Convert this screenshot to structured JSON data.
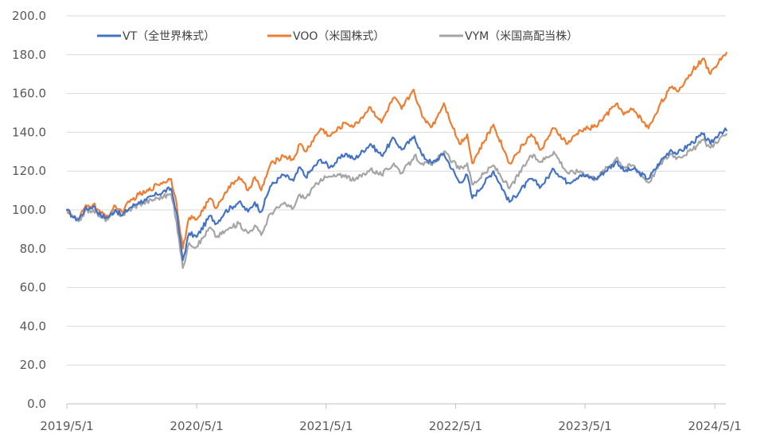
{
  "chart_data": {
    "type": "line",
    "title": "",
    "xlabel": "",
    "ylabel": "",
    "ylim": [
      0,
      200
    ],
    "xlim": [
      "2019-05-01",
      "2024-06-01"
    ],
    "grid": true,
    "legend_position": "top-left",
    "y_ticks": [
      "0.0",
      "20.0",
      "40.0",
      "60.0",
      "80.0",
      "100.0",
      "120.0",
      "140.0",
      "160.0",
      "180.0",
      "200.0"
    ],
    "x_ticks": [
      {
        "date": "2019-05-01",
        "label": "2019/5/1"
      },
      {
        "date": "2020-05-01",
        "label": "2020/5/1"
      },
      {
        "date": "2021-05-01",
        "label": "2021/5/1"
      },
      {
        "date": "2022-05-01",
        "label": "2022/5/1"
      },
      {
        "date": "2023-05-01",
        "label": "2023/5/1"
      },
      {
        "date": "2024-05-01",
        "label": "2024/5/1"
      }
    ],
    "series": [
      {
        "name": "VT（全世界株式）",
        "color": "#4472c4",
        "points": [
          [
            "2019-05-01",
            100
          ],
          [
            "2019-05-20",
            96
          ],
          [
            "2019-06-03",
            95
          ],
          [
            "2019-06-20",
            100
          ],
          [
            "2019-07-15",
            102
          ],
          [
            "2019-08-05",
            97
          ],
          [
            "2019-08-25",
            96
          ],
          [
            "2019-09-15",
            100
          ],
          [
            "2019-10-03",
            97
          ],
          [
            "2019-10-25",
            101
          ],
          [
            "2019-11-20",
            104
          ],
          [
            "2019-12-10",
            105
          ],
          [
            "2020-01-10",
            108
          ],
          [
            "2020-02-19",
            111
          ],
          [
            "2020-03-05",
            99
          ],
          [
            "2020-03-23",
            74
          ],
          [
            "2020-04-10",
            88
          ],
          [
            "2020-05-01",
            86
          ],
          [
            "2020-06-08",
            97
          ],
          [
            "2020-06-26",
            93
          ],
          [
            "2020-07-20",
            99
          ],
          [
            "2020-08-28",
            104
          ],
          [
            "2020-09-23",
            99
          ],
          [
            "2020-10-12",
            104
          ],
          [
            "2020-10-30",
            99
          ],
          [
            "2020-11-24",
            112
          ],
          [
            "2020-12-31",
            118
          ],
          [
            "2021-01-29",
            115
          ],
          [
            "2021-02-16",
            122
          ],
          [
            "2021-03-04",
            117
          ],
          [
            "2021-04-16",
            126
          ],
          [
            "2021-05-12",
            122
          ],
          [
            "2021-06-25",
            129
          ],
          [
            "2021-07-19",
            126
          ],
          [
            "2021-09-03",
            134
          ],
          [
            "2021-10-04",
            128
          ],
          [
            "2021-11-08",
            137
          ],
          [
            "2021-11-30",
            131
          ],
          [
            "2021-12-27",
            136
          ],
          [
            "2022-01-05",
            138
          ],
          [
            "2022-01-27",
            128
          ],
          [
            "2022-02-24",
            124
          ],
          [
            "2022-03-29",
            129
          ],
          [
            "2022-05-12",
            114
          ],
          [
            "2022-06-03",
            118
          ],
          [
            "2022-06-17",
            106
          ],
          [
            "2022-08-16",
            120
          ],
          [
            "2022-09-30",
            104
          ],
          [
            "2022-11-30",
            116
          ],
          [
            "2022-12-28",
            112
          ],
          [
            "2023-02-02",
            121
          ],
          [
            "2023-03-13",
            114
          ],
          [
            "2023-04-18",
            118
          ],
          [
            "2023-05-31",
            116
          ],
          [
            "2023-07-31",
            125
          ],
          [
            "2023-08-18",
            120
          ],
          [
            "2023-09-14",
            121
          ],
          [
            "2023-10-27",
            116
          ],
          [
            "2023-11-30",
            125
          ],
          [
            "2023-12-29",
            131
          ],
          [
            "2024-01-17",
            129
          ],
          [
            "2024-02-29",
            135
          ],
          [
            "2024-03-28",
            139
          ],
          [
            "2024-04-19",
            134
          ],
          [
            "2024-05-15",
            140
          ],
          [
            "2024-06-03",
            141
          ]
        ]
      },
      {
        "name": "VOO（米国株式）",
        "color": "#ed7d31",
        "points": [
          [
            "2019-05-01",
            100
          ],
          [
            "2019-05-20",
            96
          ],
          [
            "2019-06-03",
            95
          ],
          [
            "2019-06-20",
            101
          ],
          [
            "2019-07-15",
            103
          ],
          [
            "2019-08-05",
            98
          ],
          [
            "2019-08-25",
            97
          ],
          [
            "2019-09-15",
            102
          ],
          [
            "2019-10-03",
            99
          ],
          [
            "2019-10-25",
            104
          ],
          [
            "2019-11-20",
            108
          ],
          [
            "2019-12-10",
            109
          ],
          [
            "2020-01-10",
            113
          ],
          [
            "2020-02-19",
            116
          ],
          [
            "2020-03-05",
            104
          ],
          [
            "2020-03-23",
            80
          ],
          [
            "2020-04-10",
            96
          ],
          [
            "2020-05-01",
            95
          ],
          [
            "2020-06-08",
            106
          ],
          [
            "2020-06-26",
            101
          ],
          [
            "2020-07-20",
            109
          ],
          [
            "2020-08-28",
            117
          ],
          [
            "2020-09-23",
            110
          ],
          [
            "2020-10-12",
            117
          ],
          [
            "2020-10-30",
            110
          ],
          [
            "2020-11-24",
            123
          ],
          [
            "2020-12-31",
            128
          ],
          [
            "2021-01-29",
            126
          ],
          [
            "2021-02-16",
            134
          ],
          [
            "2021-03-04",
            130
          ],
          [
            "2021-04-16",
            142
          ],
          [
            "2021-05-12",
            138
          ],
          [
            "2021-06-25",
            145
          ],
          [
            "2021-07-19",
            143
          ],
          [
            "2021-09-03",
            153
          ],
          [
            "2021-10-04",
            145
          ],
          [
            "2021-11-08",
            158
          ],
          [
            "2021-11-30",
            152
          ],
          [
            "2021-12-27",
            160
          ],
          [
            "2022-01-03",
            162
          ],
          [
            "2022-01-27",
            148
          ],
          [
            "2022-02-24",
            143
          ],
          [
            "2022-03-29",
            155
          ],
          [
            "2022-05-12",
            134
          ],
          [
            "2022-06-03",
            139
          ],
          [
            "2022-06-17",
            124
          ],
          [
            "2022-08-16",
            144
          ],
          [
            "2022-09-30",
            124
          ],
          [
            "2022-11-30",
            139
          ],
          [
            "2022-12-28",
            131
          ],
          [
            "2023-02-02",
            142
          ],
          [
            "2023-03-13",
            134
          ],
          [
            "2023-04-18",
            141
          ],
          [
            "2023-05-31",
            143
          ],
          [
            "2023-07-31",
            155
          ],
          [
            "2023-08-18",
            149
          ],
          [
            "2023-09-14",
            152
          ],
          [
            "2023-10-27",
            142
          ],
          [
            "2023-11-30",
            155
          ],
          [
            "2023-12-29",
            163
          ],
          [
            "2024-01-17",
            161
          ],
          [
            "2024-02-29",
            172
          ],
          [
            "2024-03-28",
            178
          ],
          [
            "2024-04-19",
            170
          ],
          [
            "2024-05-15",
            178
          ],
          [
            "2024-06-03",
            181
          ]
        ]
      },
      {
        "name": "VYM（米国高配当株）",
        "color": "#a5a5a5",
        "points": [
          [
            "2019-05-01",
            100
          ],
          [
            "2019-05-20",
            96
          ],
          [
            "2019-06-03",
            94
          ],
          [
            "2019-06-20",
            99
          ],
          [
            "2019-07-15",
            100
          ],
          [
            "2019-08-05",
            96
          ],
          [
            "2019-08-25",
            95
          ],
          [
            "2019-09-15",
            100
          ],
          [
            "2019-10-03",
            97
          ],
          [
            "2019-10-25",
            100
          ],
          [
            "2019-11-20",
            103
          ],
          [
            "2019-12-10",
            104
          ],
          [
            "2020-01-10",
            106
          ],
          [
            "2020-02-19",
            108
          ],
          [
            "2020-03-05",
            94
          ],
          [
            "2020-03-23",
            70
          ],
          [
            "2020-04-10",
            83
          ],
          [
            "2020-05-01",
            81
          ],
          [
            "2020-06-08",
            91
          ],
          [
            "2020-06-26",
            86
          ],
          [
            "2020-07-20",
            89
          ],
          [
            "2020-08-28",
            93
          ],
          [
            "2020-09-23",
            88
          ],
          [
            "2020-10-12",
            92
          ],
          [
            "2020-10-30",
            87
          ],
          [
            "2020-11-24",
            98
          ],
          [
            "2020-12-31",
            103
          ],
          [
            "2021-01-29",
            101
          ],
          [
            "2021-02-16",
            108
          ],
          [
            "2021-03-04",
            106
          ],
          [
            "2021-04-16",
            116
          ],
          [
            "2021-05-12",
            117
          ],
          [
            "2021-06-25",
            118
          ],
          [
            "2021-07-19",
            115
          ],
          [
            "2021-09-03",
            121
          ],
          [
            "2021-10-04",
            118
          ],
          [
            "2021-11-08",
            124
          ],
          [
            "2021-11-30",
            119
          ],
          [
            "2021-12-27",
            125
          ],
          [
            "2022-01-05",
            128
          ],
          [
            "2022-01-27",
            124
          ],
          [
            "2022-02-24",
            123
          ],
          [
            "2022-03-29",
            130
          ],
          [
            "2022-05-12",
            121
          ],
          [
            "2022-06-03",
            124
          ],
          [
            "2022-06-17",
            113
          ],
          [
            "2022-08-16",
            123
          ],
          [
            "2022-09-30",
            111
          ],
          [
            "2022-11-30",
            128
          ],
          [
            "2022-12-28",
            125
          ],
          [
            "2023-02-02",
            130
          ],
          [
            "2023-03-13",
            119
          ],
          [
            "2023-04-18",
            120
          ],
          [
            "2023-05-31",
            116
          ],
          [
            "2023-07-31",
            127
          ],
          [
            "2023-08-18",
            122
          ],
          [
            "2023-09-14",
            123
          ],
          [
            "2023-10-27",
            114
          ],
          [
            "2023-11-30",
            124
          ],
          [
            "2023-12-29",
            129
          ],
          [
            "2024-01-17",
            127
          ],
          [
            "2024-02-29",
            131
          ],
          [
            "2024-03-28",
            136
          ],
          [
            "2024-04-19",
            132
          ],
          [
            "2024-05-15",
            137
          ],
          [
            "2024-06-03",
            139
          ]
        ]
      }
    ]
  }
}
